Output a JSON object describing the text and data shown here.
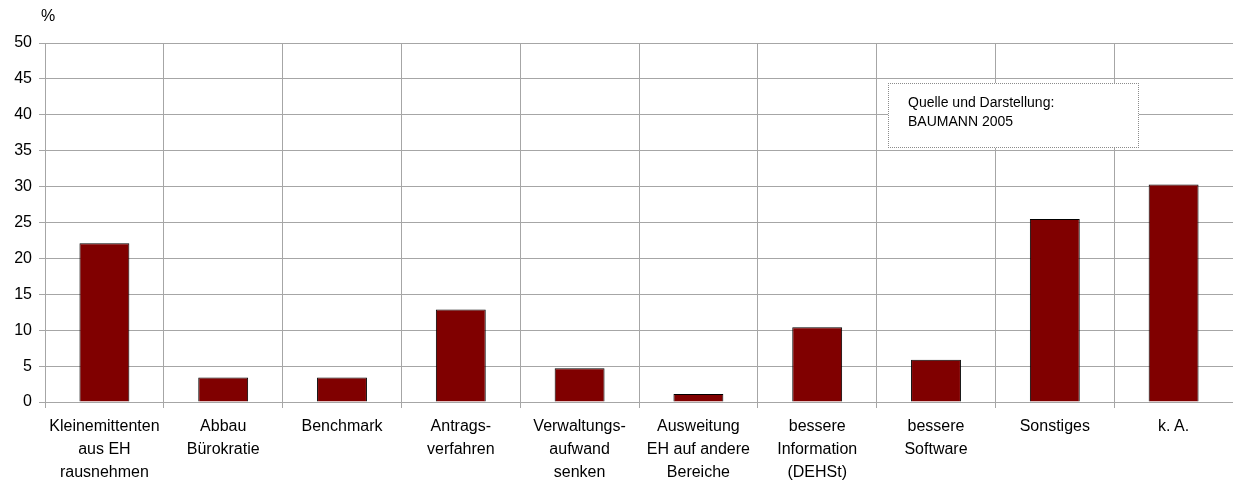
{
  "chart_data": {
    "type": "bar",
    "ylabel": "%",
    "categories": [
      "Kleinemittenten\naus EH\nrausnehmen",
      "Abbau\nBürokratie",
      "Benchmark",
      "Antrags-\nverfahren",
      "Verwaltungs-\naufwand\nsenken",
      "Ausweitung\nEH auf andere\nBereiche",
      "bessere\nInformation\n(DEHSt)",
      "bessere\nSoftware",
      "Sonstiges",
      "k. A."
    ],
    "values": [
      22.1,
      3.4,
      3.4,
      12.9,
      4.7,
      1.1,
      10.4,
      5.9,
      25.5,
      30.3
    ],
    "color": "#800000",
    "ylim": [
      0,
      50
    ],
    "yticks": [
      0,
      5,
      10,
      15,
      20,
      25,
      30,
      35,
      40,
      45,
      50
    ],
    "grid": true,
    "annotations": [
      "Quelle und Darstellung:\nBAUMANN 2005"
    ]
  }
}
